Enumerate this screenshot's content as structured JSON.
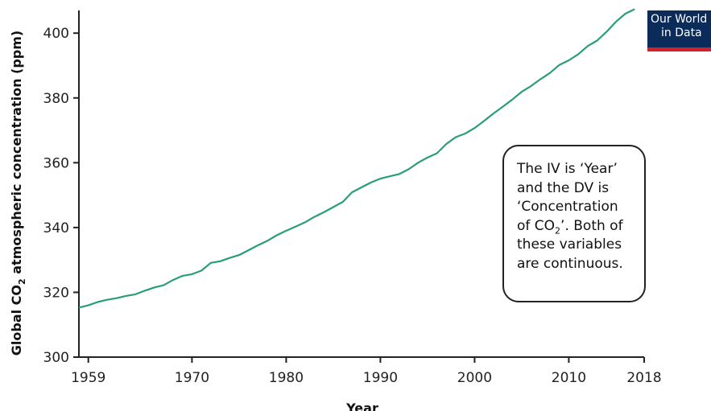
{
  "logo": {
    "line1": "Our World",
    "line2": "in Data"
  },
  "annotation": {
    "line1": "The IV is ‘Year’",
    "line2": "and the DV is",
    "line3": "‘Concentration",
    "line4_pre": "of CO",
    "line4_sub": "2",
    "line4_post": "’. Both of",
    "line5": "these variables",
    "line6": "are continuous."
  },
  "chart_data": {
    "type": "line",
    "title": "",
    "xlabel": "Year",
    "ylabel_pre": "Global CO",
    "ylabel_sub": "2",
    "ylabel_post": " atmospheric concentration (ppm)",
    "xlim": [
      1958,
      2018
    ],
    "ylim": [
      300,
      407
    ],
    "xticks": [
      1959,
      1970,
      1980,
      1990,
      2000,
      2010,
      2018
    ],
    "yticks": [
      300,
      320,
      340,
      360,
      380,
      400
    ],
    "line_color": "#2a9d78",
    "grid": false,
    "series": [
      {
        "x": [
          1958,
          1959,
          1960,
          1961,
          1962,
          1963,
          1964,
          1965,
          1966,
          1967,
          1968,
          1969,
          1970,
          1971,
          1972,
          1973,
          1974,
          1975,
          1976,
          1977,
          1978,
          1979,
          1980,
          1981,
          1982,
          1983,
          1984,
          1985,
          1986,
          1987,
          1988,
          1989,
          1990,
          1991,
          1992,
          1993,
          1994,
          1995,
          1996,
          1997,
          1998,
          1999,
          2000,
          2001,
          2002,
          2003,
          2004,
          2005,
          2006,
          2007,
          2008,
          2009,
          2010,
          2011,
          2012,
          2013,
          2014,
          2015,
          2016,
          2017
        ],
        "y": [
          315.3,
          316.0,
          317.0,
          317.7,
          318.2,
          318.9,
          319.4,
          320.5,
          321.5,
          322.2,
          323.8,
          325.1,
          325.6,
          326.7,
          329.1,
          329.6,
          330.6,
          331.5,
          333.0,
          334.5,
          335.9,
          337.6,
          339.0,
          340.3,
          341.6,
          343.3,
          344.7,
          346.3,
          347.9,
          350.9,
          352.4,
          353.9,
          355.1,
          355.8,
          356.5,
          358.0,
          360.0,
          361.6,
          362.9,
          365.8,
          367.9,
          369.0,
          370.7,
          372.9,
          375.2,
          377.3,
          379.5,
          381.9,
          383.7,
          385.8,
          387.7,
          390.2,
          391.6,
          393.5,
          396.0,
          397.7,
          400.4,
          403.5,
          406.0,
          407.4
        ]
      }
    ]
  }
}
